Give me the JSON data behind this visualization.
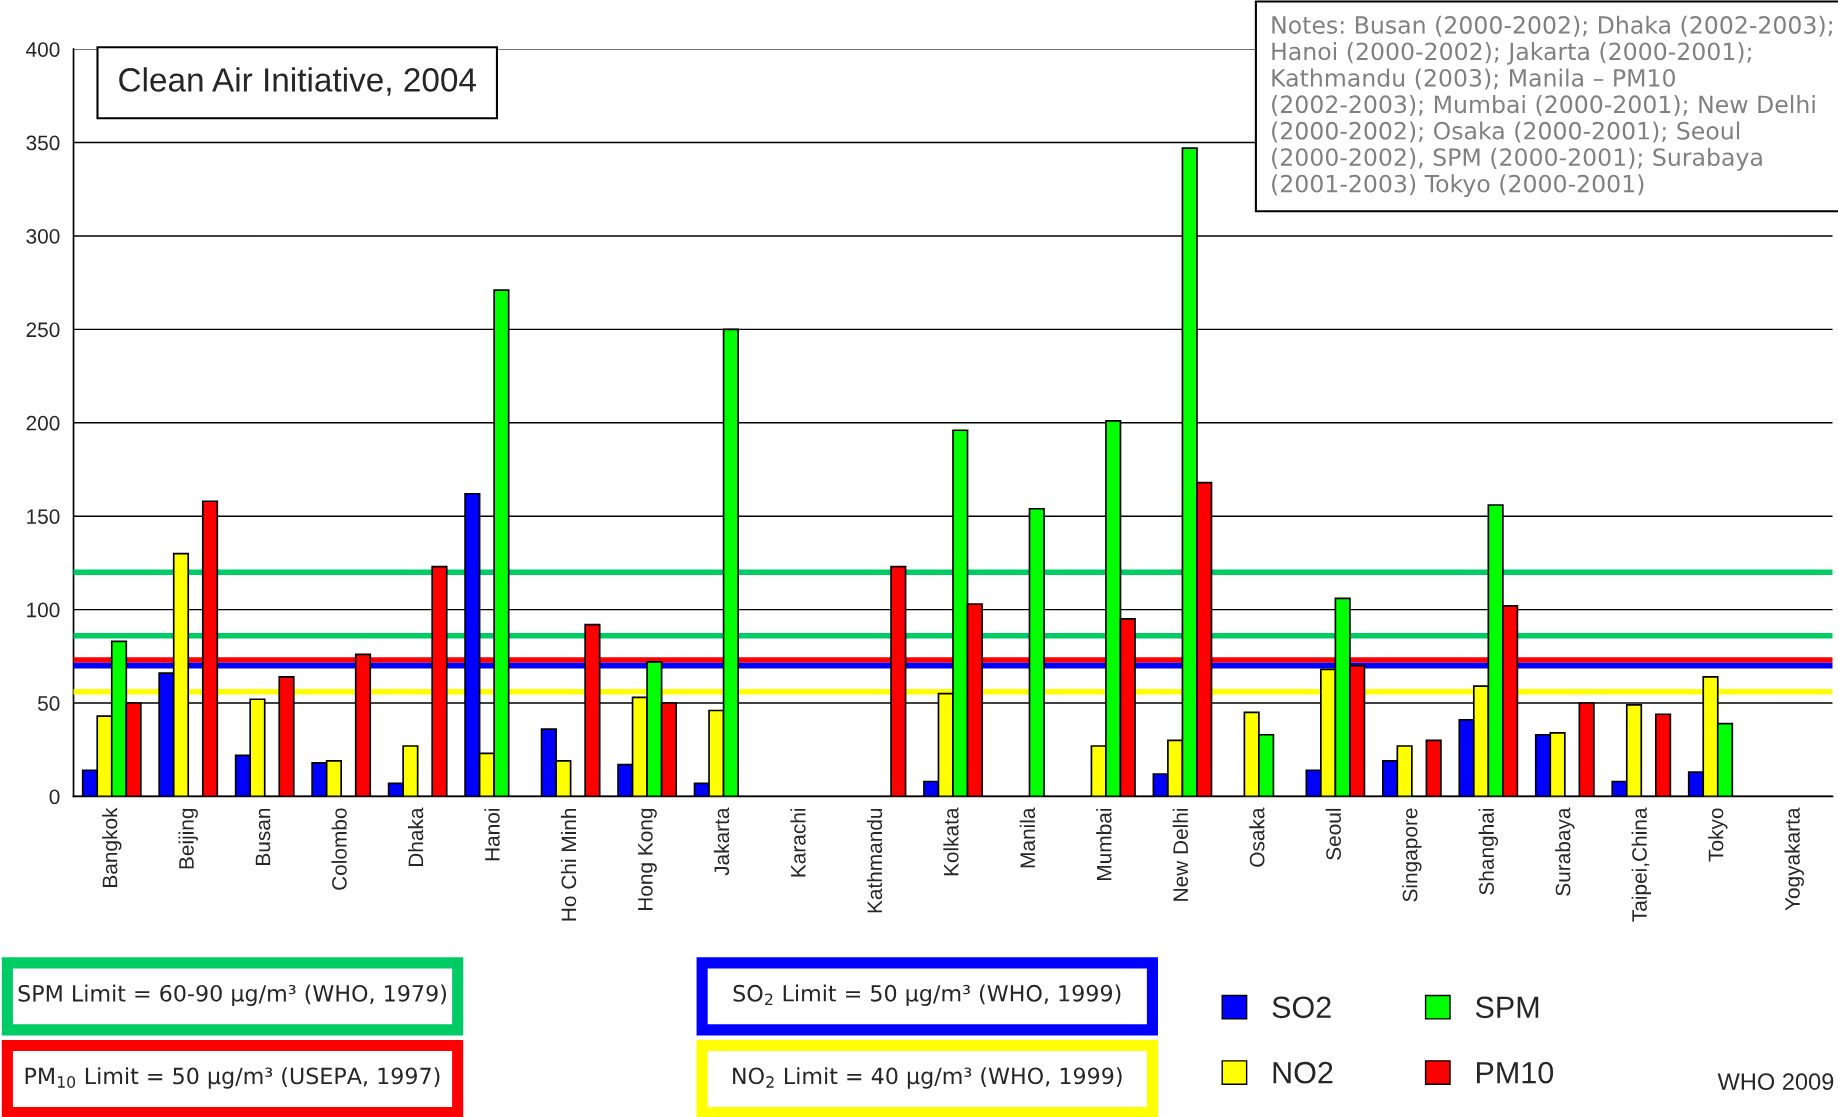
{
  "chart_data": {
    "type": "bar",
    "title": "Clean Air Initiative, 2004",
    "categories": [
      "Bangkok",
      "Beijing",
      "Busan",
      "Colombo",
      "Dhaka",
      "Hanoi",
      "Ho Chi Minh",
      "Hong Kong",
      "Jakarta",
      "Karachi",
      "Kathmandu",
      "Kolkata",
      "Manila",
      "Mumbai",
      "New Delhi",
      "Osaka",
      "Seoul",
      "Singapore",
      "Shanghai",
      "Surabaya",
      "Taipei,China",
      "Tokyo",
      "Yogyakarta"
    ],
    "series": [
      {
        "name": "SO2",
        "color": "#0000ff",
        "values": [
          14,
          66,
          22,
          18,
          7,
          162,
          36,
          17,
          7,
          null,
          null,
          8,
          null,
          null,
          12,
          null,
          14,
          19,
          41,
          33,
          8,
          13,
          null
        ]
      },
      {
        "name": "NO2",
        "color": "#ffff00",
        "values": [
          43,
          130,
          52,
          19,
          27,
          23,
          19,
          53,
          46,
          null,
          null,
          55,
          null,
          27,
          30,
          45,
          68,
          27,
          59,
          34,
          49,
          64,
          null
        ]
      },
      {
        "name": "SPM",
        "color": "#00ff00",
        "values": [
          83,
          null,
          null,
          null,
          null,
          271,
          null,
          72,
          250,
          null,
          null,
          196,
          154,
          201,
          347,
          33,
          106,
          null,
          156,
          null,
          null,
          39,
          null
        ]
      },
      {
        "name": "PM10",
        "color": "#ff0000",
        "values": [
          50,
          158,
          64,
          76,
          123,
          null,
          92,
          50,
          null,
          null,
          123,
          103,
          null,
          95,
          168,
          null,
          70,
          30,
          102,
          50,
          44,
          null,
          null
        ]
      }
    ],
    "ylim": [
      0,
      400
    ],
    "yticks": [
      0,
      50,
      100,
      150,
      200,
      250,
      300,
      350,
      400
    ],
    "grid": "y",
    "legend": "bottom",
    "ref_lines": [
      {
        "axis": "y",
        "value": 120,
        "color": "#00cc66"
      },
      {
        "axis": "y",
        "value": 86,
        "color": "#00cc66"
      },
      {
        "axis": "y",
        "value": 73,
        "color": "#ff0000"
      },
      {
        "axis": "y",
        "value": 70,
        "color": "#0000ff"
      },
      {
        "axis": "y",
        "value": 56,
        "color": "#ffff00"
      }
    ],
    "annotations": [
      "SPM Limit = 60-90 μg/m³ (WHO, 1979)",
      "PM$_{10}$ Limit = 50 μg/m³ (USEPA, 1997)",
      "SO$_{2}$ Limit = 50 μg/m³ (WHO, 1999)",
      "NO$_{2}$ Limit = 40 μg/m³ (WHO, 1999)",
      "Notes: Busan (2000-2002); Dhaka (2002-2003); Hanoi (2000-2002); Jakarta (2000-2001); Kathmandu (2003); Manila – PM10 (2002-2003); Mumbai (2000-2001); New Delhi (2000-2002); Osaka (2000-2001); Seoul (2000-2002), SPM (2000-2001); Surabaya (2001-2003) Tokyo (2000-2001)",
      "WHO 2009"
    ]
  }
}
